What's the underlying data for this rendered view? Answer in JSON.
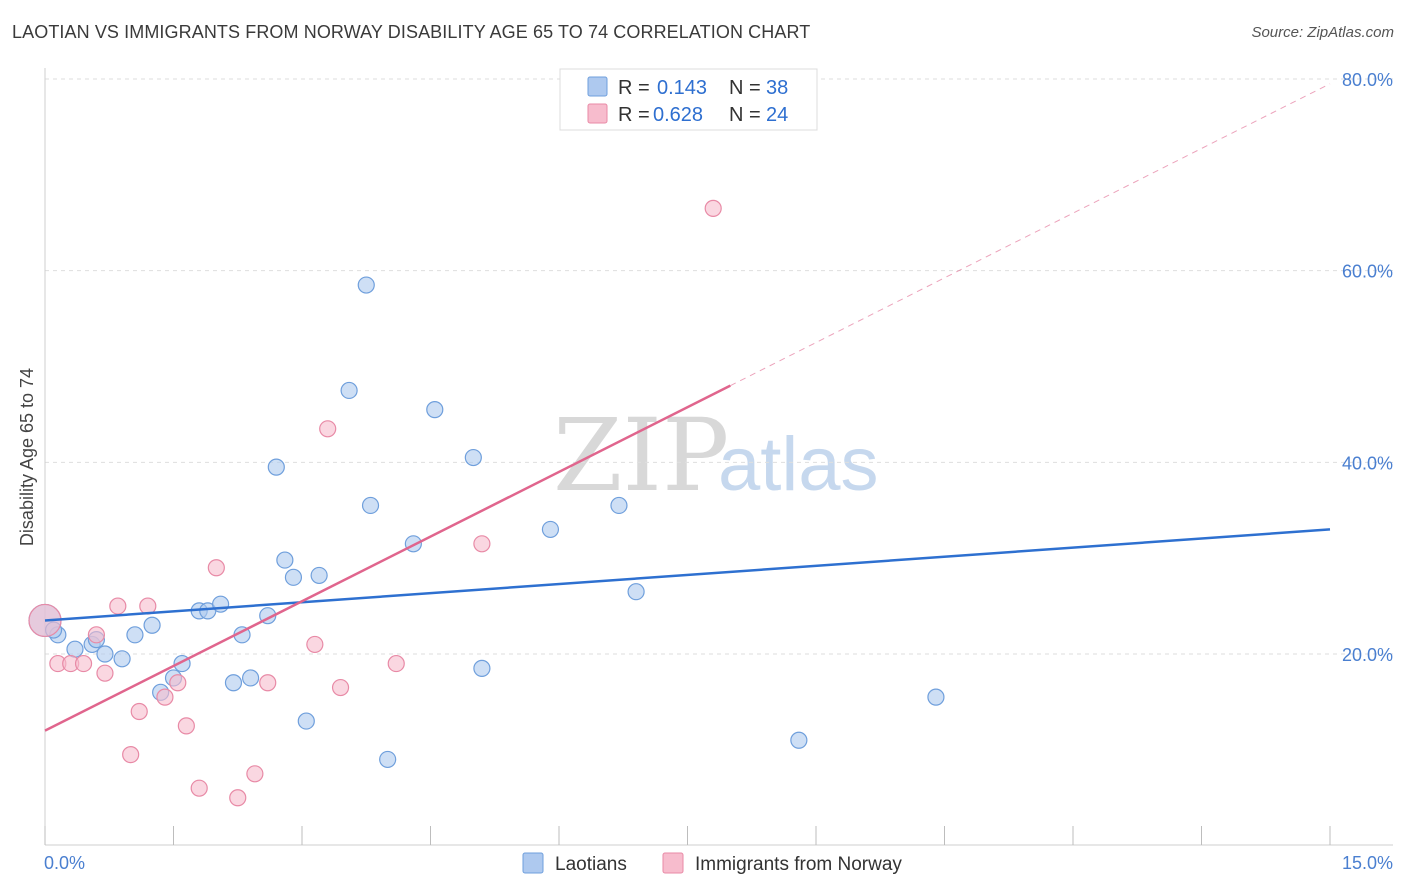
{
  "header": {
    "title": "LAOTIAN VS IMMIGRANTS FROM NORWAY DISABILITY AGE 65 TO 74 CORRELATION CHART",
    "source": "Source: ZipAtlas.com"
  },
  "watermark": {
    "zip": "ZIP",
    "atlas": "atlas"
  },
  "legend": {
    "r_label": "R =",
    "n_label": "N =",
    "rows": [
      {
        "r": "0.143",
        "n": "38"
      },
      {
        "r": "0.628",
        "n": "24"
      }
    ]
  },
  "colors": {
    "laotian_fill": "#aec9ef",
    "laotian_stroke": "#6f9fdc",
    "laotian_line": "#2e70d0",
    "norway_fill": "#f7bccd",
    "norway_stroke": "#e88aa6",
    "norway_line": "#e0658d",
    "tick_text": "#4a7fd0"
  },
  "chart_data": {
    "type": "scatter",
    "title": "LAOTIAN VS IMMIGRANTS FROM NORWAY DISABILITY AGE 65 TO 74 CORRELATION CHART",
    "xlabel": "",
    "ylabel": "Disability Age 65 to 74",
    "xlim": [
      0,
      15
    ],
    "ylim": [
      0,
      82
    ],
    "x_tick_labels": [
      "0.0%",
      "15.0%"
    ],
    "y_ticks": [
      20,
      40,
      60,
      80
    ],
    "y_tick_labels": [
      "20.0%",
      "40.0%",
      "60.0%",
      "80.0%"
    ],
    "grid": true,
    "legend_position": "bottom",
    "series": [
      {
        "name": "Laotians",
        "r": 0.143,
        "n": 38,
        "trend": {
          "x0": 0,
          "y0": 23.5,
          "x1": 15,
          "y1": 33.0
        },
        "points": [
          [
            0.0,
            23.5,
            "big"
          ],
          [
            0.15,
            22.0
          ],
          [
            0.35,
            20.5
          ],
          [
            0.55,
            21.0
          ],
          [
            0.6,
            21.5
          ],
          [
            0.7,
            20.0
          ],
          [
            0.9,
            19.5
          ],
          [
            1.05,
            22.0
          ],
          [
            1.25,
            23.0
          ],
          [
            1.35,
            16.0
          ],
          [
            1.5,
            17.5
          ],
          [
            1.6,
            19.0
          ],
          [
            1.8,
            24.5
          ],
          [
            1.9,
            24.5
          ],
          [
            2.05,
            25.2
          ],
          [
            2.2,
            17.0
          ],
          [
            2.3,
            22.0
          ],
          [
            2.4,
            17.5
          ],
          [
            2.6,
            24.0
          ],
          [
            2.7,
            39.5
          ],
          [
            2.8,
            29.8
          ],
          [
            2.9,
            28.0
          ],
          [
            3.05,
            13.0
          ],
          [
            3.2,
            28.2
          ],
          [
            3.55,
            47.5
          ],
          [
            3.75,
            58.5
          ],
          [
            3.8,
            35.5
          ],
          [
            4.0,
            9.0
          ],
          [
            4.3,
            31.5
          ],
          [
            4.55,
            45.5
          ],
          [
            5.0,
            40.5
          ],
          [
            5.1,
            18.5
          ],
          [
            5.9,
            33.0
          ],
          [
            6.7,
            35.5
          ],
          [
            6.9,
            26.5
          ],
          [
            8.8,
            11.0
          ],
          [
            10.4,
            15.5
          ],
          [
            0.1,
            22.5
          ]
        ]
      },
      {
        "name": "Immigrants from Norway",
        "r": 0.628,
        "n": 24,
        "trend": {
          "x0": 0,
          "y0": 12.0,
          "x1": 8.0,
          "y1": 48.0,
          "dash_x1": 15,
          "dash_y1": 79.5
        },
        "points": [
          [
            0.0,
            23.5,
            "big"
          ],
          [
            0.15,
            19.0
          ],
          [
            0.3,
            19.0
          ],
          [
            0.45,
            19.0
          ],
          [
            0.6,
            22.0
          ],
          [
            0.7,
            18.0
          ],
          [
            0.85,
            25.0
          ],
          [
            1.0,
            9.5
          ],
          [
            1.1,
            14.0
          ],
          [
            1.2,
            25.0
          ],
          [
            1.4,
            15.5
          ],
          [
            1.55,
            17.0
          ],
          [
            1.65,
            12.5
          ],
          [
            1.8,
            6.0
          ],
          [
            2.0,
            29.0
          ],
          [
            2.25,
            5.0
          ],
          [
            2.45,
            7.5
          ],
          [
            2.6,
            17.0
          ],
          [
            3.15,
            21.0
          ],
          [
            3.3,
            43.5
          ],
          [
            3.45,
            16.5
          ],
          [
            4.1,
            19.0
          ],
          [
            5.1,
            31.5
          ],
          [
            7.8,
            66.5
          ]
        ]
      }
    ]
  }
}
